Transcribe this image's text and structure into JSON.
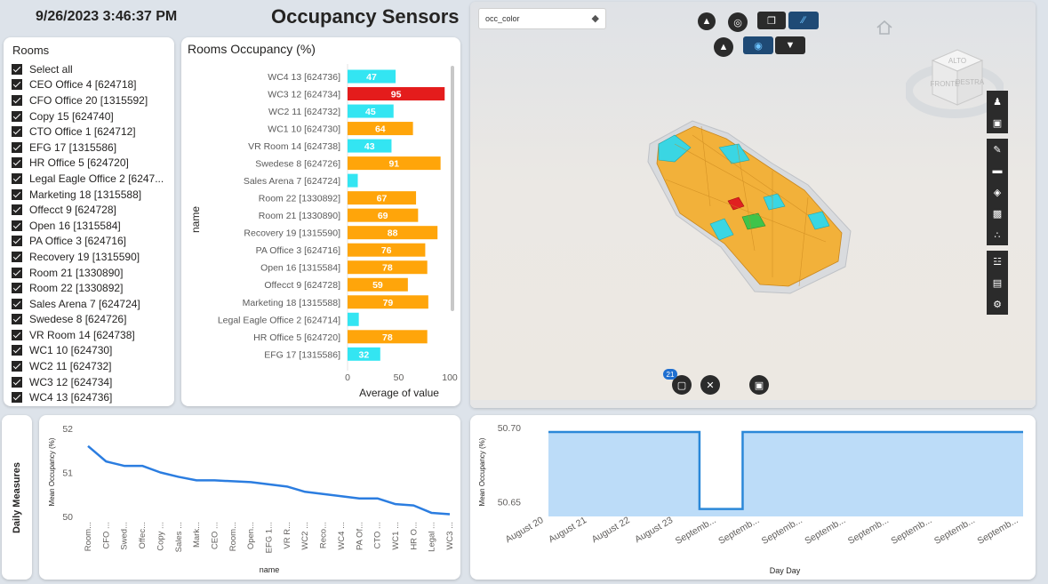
{
  "header": {
    "datetime": "9/26/2023 3:46:37 PM",
    "title": "Occupancy Sensors"
  },
  "rooms_slicer": {
    "header": "Rooms",
    "items": [
      "Select all",
      "CEO Office 4 [624718]",
      "CFO Office 20 [1315592]",
      "Copy 15 [624740]",
      "CTO Office 1 [624712]",
      "EFG 17 [1315586]",
      "HR Office 5 [624720]",
      "Legal Eagle Office 2 [6247...",
      "Marketing 18 [1315588]",
      "Offecct 9 [624728]",
      "Open 16 [1315584]",
      "PA Office 3 [624716]",
      "Recovery 19 [1315590]",
      "Room 21 [1330890]",
      "Room 22 [1330892]",
      "Sales Arena 7 [624724]",
      "Swedese 8 [624726]",
      "VR Room 14 [624738]",
      "WC1 10 [624730]",
      "WC2 11 [624732]",
      "WC3 12 [624734]",
      "WC4 13 [624736]"
    ]
  },
  "viewer": {
    "color_select": "occ_color",
    "selection_count": "21",
    "cube_labels": [
      "ALTO",
      "FRONTE",
      "DESTRA"
    ],
    "colors": {
      "low": "#3ad6e3",
      "mid": "#f2b13a",
      "high": "#e02020",
      "green": "#3fc44a"
    }
  },
  "daily": {
    "label": "Daily Measures"
  },
  "chart_data": [
    {
      "type": "bar",
      "orientation": "horizontal",
      "title": "Rooms Occupancy (%)",
      "ylabel": "name",
      "xlabel": "Average of value",
      "xlim": [
        0,
        100
      ],
      "xticks": [
        0,
        50,
        100
      ],
      "categories": [
        "WC4 13 [624736]",
        "WC3 12 [624734]",
        "WC2 11 [624732]",
        "WC1 10 [624730]",
        "VR Room 14 [624738]",
        "Swedese 8 [624726]",
        "Sales Arena 7 [624724]",
        "Room 22 [1330892]",
        "Room 21 [1330890]",
        "Recovery 19 [1315590]",
        "PA Office 3 [624716]",
        "Open 16 [1315584]",
        "Offecct 9 [624728]",
        "Marketing 18 [1315588]",
        "Legal Eagle Office 2 [624714]",
        "HR Office 5 [624720]",
        "EFG 17 [1315586]"
      ],
      "values": [
        47,
        95,
        45,
        64,
        43,
        91,
        10,
        67,
        69,
        88,
        76,
        78,
        59,
        79,
        11,
        78,
        32
      ],
      "labels": [
        "47",
        "95",
        "45",
        "64",
        "43",
        "91",
        "",
        "67",
        "69",
        "88",
        "76",
        "78",
        "59",
        "79",
        "",
        "78",
        "32"
      ],
      "colors": [
        "#33e5f2",
        "#e41c1c",
        "#33e5f2",
        "#ffa50a",
        "#33e5f2",
        "#ffa50a",
        "#33e5f2",
        "#ffa50a",
        "#ffa50a",
        "#ffa50a",
        "#ffa50a",
        "#ffa50a",
        "#ffa50a",
        "#ffa50a",
        "#33e5f2",
        "#ffa50a",
        "#33e5f2"
      ]
    },
    {
      "type": "line",
      "ylabel": "Mean Occupancy (%)",
      "xlabel": "name",
      "ylim": [
        50,
        52
      ],
      "yticks": [
        50,
        51,
        52
      ],
      "categories": [
        "Room...",
        "CFO ...",
        "Swed...",
        "Offec...",
        "Copy ...",
        "Sales ...",
        "Mark...",
        "CEO ...",
        "Room...",
        "Open...",
        "EFG 1...",
        "VR R...",
        "WC2 ...",
        "Reco...",
        "WC4 ...",
        "PA Of...",
        "CTO ...",
        "WC1 ...",
        "HR O...",
        "Legal ...",
        "WC3 ..."
      ],
      "values": [
        51.6,
        51.25,
        51.15,
        51.15,
        51.0,
        50.9,
        50.82,
        50.82,
        50.8,
        50.78,
        50.73,
        50.68,
        50.56,
        50.51,
        50.46,
        50.41,
        50.41,
        50.28,
        50.25,
        50.08,
        50.05
      ],
      "color": "#2b7de0"
    },
    {
      "type": "area",
      "ylabel": "Mean Occupancy (%)",
      "xlabel": "Day Day",
      "ylim": [
        50.64,
        50.7
      ],
      "yticks": [
        50.65,
        50.7
      ],
      "ytick_labels": [
        "50.65",
        "50.70"
      ],
      "categories": [
        "August 20",
        "August 21",
        "August 22",
        "August 23",
        "Septemb...",
        "Septemb...",
        "Septemb...",
        "Septemb...",
        "Septemb...",
        "Septemb...",
        "Septemb...",
        "Septemb..."
      ],
      "values": [
        50.697,
        50.697,
        50.697,
        50.697,
        50.645,
        50.697,
        50.697,
        50.697,
        50.697,
        50.697,
        50.697,
        50.697
      ],
      "color": "#2b88d8",
      "fill": "#bcdcf8"
    }
  ]
}
